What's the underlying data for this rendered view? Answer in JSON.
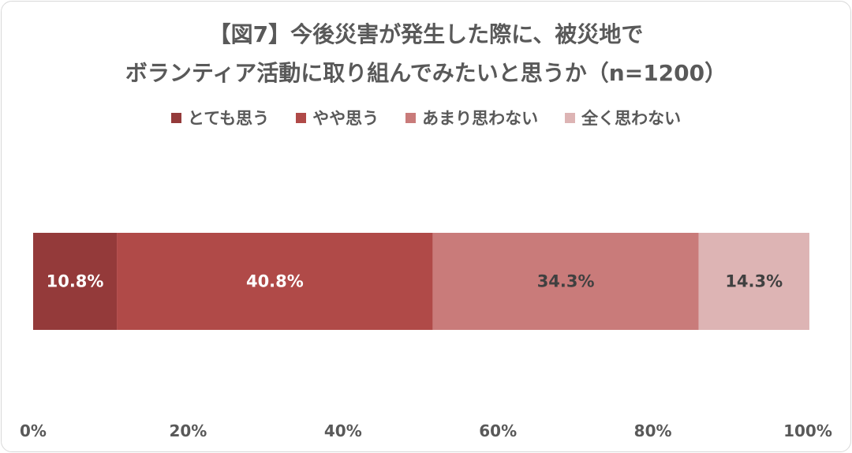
{
  "title_line1": "【図7】今後災害が発生した際に、被災地で",
  "title_line2": "ボランティア活動に取り組んでみたいと思うか（n=1200）",
  "chart_data": {
    "type": "bar",
    "orientation": "horizontal-stacked-100",
    "categories": [
      ""
    ],
    "series": [
      {
        "name": "とても思う",
        "values": [
          10.8
        ],
        "label": "10.8%",
        "color": "#943a3a",
        "label_color": "#ffffff"
      },
      {
        "name": "やや思う",
        "values": [
          40.8
        ],
        "label": "40.8%",
        "color": "#b04a48",
        "label_color": "#ffffff"
      },
      {
        "name": "あまり思わない",
        "values": [
          34.3
        ],
        "label": "34.3%",
        "color": "#c97b7a",
        "label_color": "#404040"
      },
      {
        "name": "全く思わない",
        "values": [
          14.3
        ],
        "label": "14.3%",
        "color": "#ddb4b4",
        "label_color": "#404040"
      }
    ],
    "xlim": [
      0,
      100
    ],
    "xticks": [
      "0%",
      "20%",
      "40%",
      "60%",
      "80%",
      "100%"
    ],
    "grid": false,
    "legend_position": "top"
  }
}
